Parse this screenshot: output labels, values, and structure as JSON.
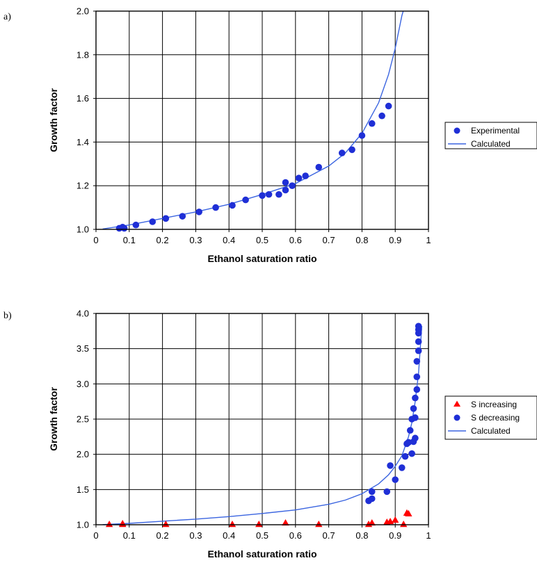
{
  "colors": {
    "blue": "#1f2fd6",
    "line_blue": "#3a64e0",
    "red": "#ff0000",
    "grid": "#000000"
  },
  "chart_data": [
    {
      "type": "scatter",
      "panel_label": "a)",
      "xlabel": "Ethanol saturation ratio",
      "ylabel": "Growth factor",
      "xlim": [
        0,
        1
      ],
      "ylim": [
        1.0,
        2.0
      ],
      "xticks": [
        0,
        0.1,
        0.2,
        0.3,
        0.4,
        0.5,
        0.6,
        0.7,
        0.8,
        0.9,
        1
      ],
      "xtick_labels": [
        "0",
        "0.1",
        "0.2",
        "0.3",
        "0.4",
        "0.5",
        "0.6",
        "0.7",
        "0.8",
        "0.9",
        "1"
      ],
      "yticks": [
        1.0,
        1.2,
        1.4,
        1.6,
        1.8,
        2.0
      ],
      "ytick_labels": [
        "1.0",
        "1.2",
        "1.4",
        "1.6",
        "1.8",
        "2.0"
      ],
      "grid": true,
      "legend_position": "right",
      "series": [
        {
          "name": "Experimental",
          "marker": "circle",
          "color": "#1f2fd6",
          "x": [
            0.07,
            0.08,
            0.085,
            0.12,
            0.17,
            0.21,
            0.26,
            0.31,
            0.36,
            0.41,
            0.45,
            0.5,
            0.52,
            0.55,
            0.57,
            0.57,
            0.59,
            0.61,
            0.63,
            0.67,
            0.74,
            0.77,
            0.8,
            0.83,
            0.86,
            0.88
          ],
          "y": [
            1.005,
            1.01,
            1.005,
            1.02,
            1.035,
            1.05,
            1.06,
            1.08,
            1.1,
            1.11,
            1.135,
            1.155,
            1.16,
            1.16,
            1.18,
            1.215,
            1.2,
            1.235,
            1.245,
            1.285,
            1.35,
            1.365,
            1.43,
            1.485,
            1.52,
            1.565
          ]
        },
        {
          "name": "Calculated",
          "marker": "line",
          "color": "#3a64e0",
          "x": [
            0.02,
            0.1,
            0.2,
            0.3,
            0.4,
            0.5,
            0.6,
            0.7,
            0.75,
            0.8,
            0.85,
            0.88,
            0.9,
            0.92,
            0.93
          ],
          "y": [
            1.002,
            1.02,
            1.05,
            1.08,
            1.115,
            1.16,
            1.21,
            1.29,
            1.35,
            1.44,
            1.58,
            1.71,
            1.83,
            1.98,
            2.03
          ]
        }
      ]
    },
    {
      "type": "scatter",
      "panel_label": "b)",
      "xlabel": "Ethanol saturation ratio",
      "ylabel": "Growth factor",
      "xlim": [
        0,
        1
      ],
      "ylim": [
        1.0,
        4.0
      ],
      "xticks": [
        0,
        0.1,
        0.2,
        0.3,
        0.4,
        0.5,
        0.6,
        0.7,
        0.8,
        0.9,
        1
      ],
      "xtick_labels": [
        "0",
        "0.1",
        "0.2",
        "0.3",
        "0.4",
        "0.5",
        "0.6",
        "0.7",
        "0.8",
        "0.9",
        "1"
      ],
      "yticks": [
        1.0,
        1.5,
        2.0,
        2.5,
        3.0,
        3.5,
        4.0
      ],
      "ytick_labels": [
        "1.0",
        "1.5",
        "2.0",
        "2.5",
        "3.0",
        "3.5",
        "4.0"
      ],
      "grid": true,
      "legend_position": "right",
      "series": [
        {
          "name": "S increasing",
          "marker": "triangle",
          "color": "#ff0000",
          "x": [
            0.04,
            0.08,
            0.08,
            0.21,
            0.41,
            0.49,
            0.57,
            0.67,
            0.82,
            0.83,
            0.875,
            0.885,
            0.9,
            0.925,
            0.935,
            0.94
          ],
          "y": [
            1.0,
            1.0,
            1.01,
            1.0,
            1.0,
            1.0,
            1.02,
            1.0,
            1.0,
            1.02,
            1.03,
            1.04,
            1.06,
            1.0,
            1.16,
            1.15
          ]
        },
        {
          "name": "S decreasing",
          "marker": "circle",
          "color": "#1f2fd6",
          "x": [
            0.82,
            0.83,
            0.83,
            0.875,
            0.885,
            0.9,
            0.92,
            0.93,
            0.935,
            0.94,
            0.945,
            0.95,
            0.95,
            0.955,
            0.955,
            0.96,
            0.96,
            0.96,
            0.965,
            0.965,
            0.965,
            0.97,
            0.97,
            0.97,
            0.97,
            0.97
          ],
          "y": [
            1.34,
            1.37,
            1.47,
            1.47,
            1.84,
            1.64,
            1.81,
            1.97,
            2.15,
            2.17,
            2.34,
            2.01,
            2.5,
            2.18,
            2.65,
            2.23,
            2.52,
            2.8,
            2.92,
            3.1,
            3.32,
            3.47,
            3.6,
            3.72,
            3.77,
            3.82
          ]
        },
        {
          "name": "Calculated",
          "marker": "line",
          "color": "#3a64e0",
          "x": [
            0.02,
            0.1,
            0.2,
            0.3,
            0.4,
            0.5,
            0.6,
            0.7,
            0.75,
            0.8,
            0.85,
            0.88,
            0.9,
            0.92,
            0.94,
            0.95,
            0.96,
            0.97,
            0.98
          ],
          "y": [
            1.002,
            1.02,
            1.05,
            1.08,
            1.115,
            1.16,
            1.21,
            1.29,
            1.35,
            1.44,
            1.58,
            1.71,
            1.83,
            1.98,
            2.25,
            2.45,
            2.75,
            3.15,
            3.82
          ]
        }
      ]
    }
  ]
}
